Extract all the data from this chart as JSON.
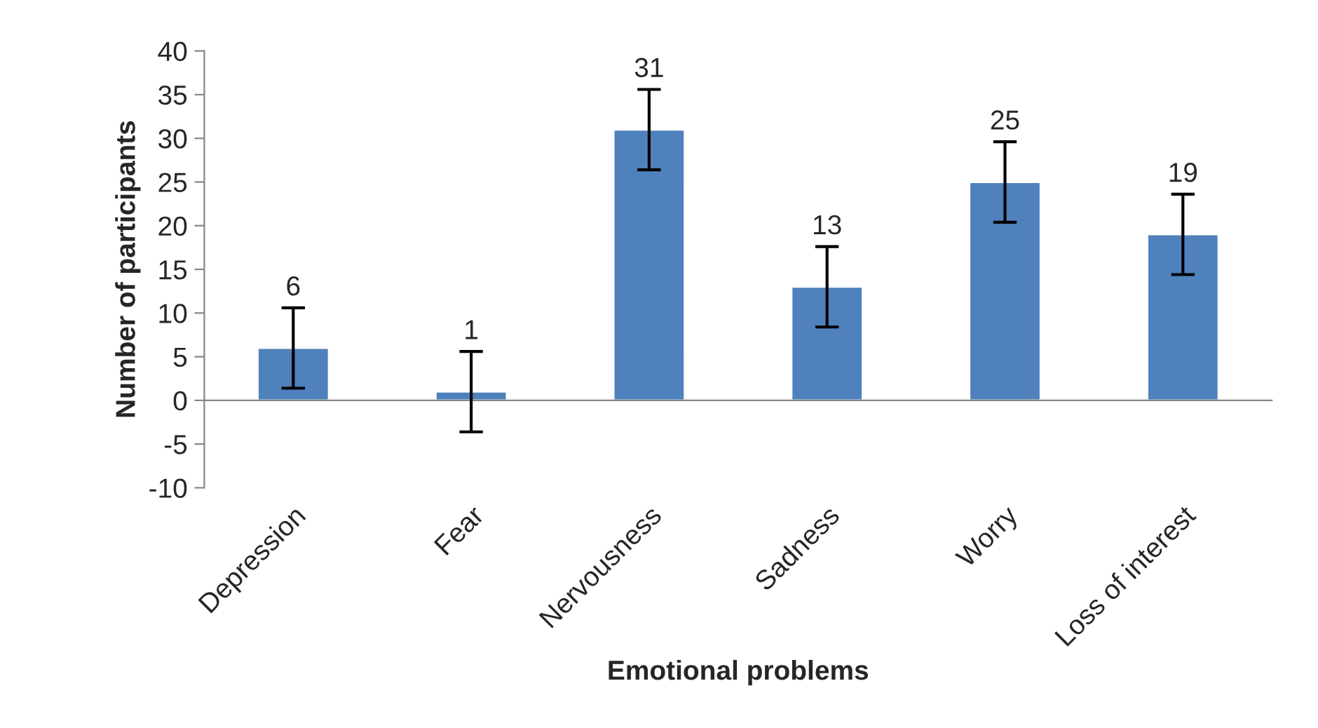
{
  "chart_data": {
    "type": "bar",
    "xlabel": "Emotional problems",
    "ylabel": "Number of participants",
    "categories": [
      "Depression",
      "Fear",
      "Nervousness",
      "Sadness",
      "Worry",
      "Loss of interest"
    ],
    "values": [
      6,
      1,
      31,
      13,
      25,
      19
    ],
    "errors": [
      4.6,
      4.6,
      4.6,
      4.6,
      4.6,
      4.6
    ],
    "color": "#4f81bd",
    "ylim": [
      -10,
      40
    ],
    "yticks": [
      -10,
      -5,
      0,
      5,
      10,
      15,
      20,
      25,
      30,
      35,
      40
    ],
    "data_labels": true
  }
}
